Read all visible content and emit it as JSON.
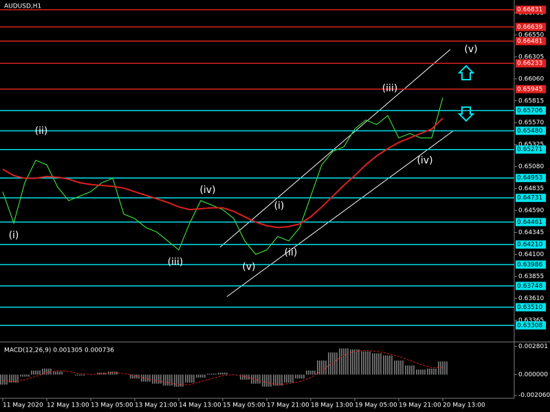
{
  "chart_data": [
    {
      "type": "line",
      "title": "AUDUSD,H1",
      "x": [
        "11 May 2020",
        null,
        null,
        null,
        "12 May 13:00",
        null,
        null,
        null,
        "13 May 05:00",
        null,
        null,
        null,
        "13 May 21:00",
        null,
        null,
        null,
        "14 May 13:00",
        null,
        null,
        null,
        "15 May 05:00",
        null,
        null,
        null,
        "17 May 21:00",
        null,
        null,
        null,
        "18 May 13:00",
        null,
        null,
        null,
        "19 May 05:00",
        null,
        null,
        null,
        "19 May 21:00",
        null,
        null,
        null,
        "20 May 13:00"
      ],
      "series": [
        {
          "color": "#3cdc3c",
          "values": [
            0.648,
            0.6445,
            0.649,
            0.6515,
            0.651,
            0.6485,
            0.647,
            0.6475,
            0.648,
            0.649,
            0.6495,
            0.6455,
            0.645,
            0.644,
            0.6435,
            0.6425,
            0.6415,
            0.6445,
            0.647,
            0.6465,
            0.646,
            0.645,
            0.6425,
            0.641,
            0.6415,
            0.643,
            0.6425,
            0.644,
            0.6475,
            0.651,
            0.6525,
            0.653,
            0.655,
            0.656,
            0.6555,
            0.6565,
            0.654,
            0.6545,
            0.654,
            0.654,
            0.6585
          ]
        },
        {
          "color": "#e02020",
          "values": [
            0.6505,
            0.6498,
            0.6495,
            0.6495,
            0.6497,
            0.6496,
            0.6494,
            0.649,
            0.6488,
            0.6487,
            0.6486,
            0.6484,
            0.648,
            0.6476,
            0.6472,
            0.6468,
            0.6463,
            0.646,
            0.6461,
            0.6462,
            0.6462,
            0.6458,
            0.6452,
            0.6446,
            0.6442,
            0.644,
            0.6441,
            0.6444,
            0.6452,
            0.6463,
            0.6475,
            0.6487,
            0.6498,
            0.651,
            0.652,
            0.6528,
            0.6535,
            0.654,
            0.6545,
            0.655,
            0.6562
          ]
        }
      ],
      "ylim": [
        0.6313,
        0.6694
      ],
      "yticks": [
        0.66795,
        {
          "value": 0.6655,
          "label": "0.66550"
        },
        0.66305,
        {
          "value": 0.6606,
          "label": "0.66060"
        },
        0.65815,
        {
          "value": 0.6557,
          "label": "0.65570"
        },
        0.65325,
        {
          "value": 0.6508,
          "label": "0.65080"
        },
        0.64835,
        {
          "value": 0.6459,
          "label": "0.64590"
        },
        0.64345,
        {
          "value": 0.641,
          "label": "0.64100"
        },
        0.63855,
        {
          "value": 0.6361,
          "label": "0.63610"
        },
        0.63365
      ],
      "levels": [
        {
          "value": 0.66831,
          "color": "#e02020"
        },
        {
          "value": 0.66639,
          "color": "#e02020"
        },
        {
          "value": 0.66481,
          "color": "#e02020"
        },
        {
          "value": 0.66233,
          "color": "#e02020"
        },
        {
          "value": 0.65945,
          "color": "#e02020"
        },
        {
          "value": 0.65706,
          "color": "#00e5ee"
        },
        {
          "value": 0.6548,
          "label": "0.65480",
          "color": "#00e5ee"
        },
        {
          "value": 0.65271,
          "color": "#00e5ee"
        },
        {
          "value": 0.64953,
          "color": "#00e5ee"
        },
        {
          "value": 0.64731,
          "color": "#00e5ee"
        },
        {
          "value": 0.64461,
          "color": "#00e5ee"
        },
        {
          "value": 0.6421,
          "label": "0.64210",
          "color": "#00e5ee"
        },
        {
          "value": 0.63986,
          "color": "#00e5ee"
        },
        {
          "value": 0.63748,
          "color": "#00e5ee"
        },
        {
          "value": 0.6351,
          "label": "0.63510",
          "color": "#00e5ee"
        },
        {
          "value": 0.63308,
          "color": "#00e5ee"
        }
      ],
      "annotations": [
        "(i)",
        "(ii)",
        "(iii)",
        "(iv)",
        "(v)",
        "(i)",
        "(ii)",
        "(iii)",
        "(iv)",
        "(v)"
      ]
    },
    {
      "type": "bar",
      "title": "MACD(12,26,9) 0.001305 0.000736",
      "series": [
        {
          "color": "#d0d0d0",
          "values": [
            -0.001,
            -0.0008,
            -0.0002,
            0.0004,
            0.0006,
            0.0003,
            0.0,
            -0.0001,
            0.0,
            0.0002,
            0.0003,
            0.0,
            -0.0004,
            -0.0007,
            -0.0009,
            -0.0011,
            -0.0012,
            -0.0008,
            -0.0003,
            0.0001,
            0.0002,
            0.0,
            -0.0005,
            -0.0009,
            -0.0012,
            -0.0011,
            -0.0008,
            -0.0004,
            0.0004,
            0.0014,
            0.0022,
            0.0026,
            0.0025,
            0.0023,
            0.0021,
            0.0019,
            0.0014,
            0.0009,
            0.0005,
            0.0006,
            0.0013
          ]
        },
        {
          "color": "#e02020",
          "values": [
            -0.0006,
            -0.0007,
            -0.0005,
            -0.0002,
            0.0002,
            0.0004,
            0.0003,
            0.0001,
            0.0,
            0.0001,
            0.0002,
            0.0001,
            -0.0001,
            -0.0004,
            -0.0006,
            -0.0008,
            -0.001,
            -0.001,
            -0.0007,
            -0.0004,
            -0.0001,
            0.0,
            -0.0002,
            -0.0005,
            -0.0008,
            -0.001,
            -0.0009,
            -0.0007,
            -0.0003,
            0.0004,
            0.0012,
            0.0019,
            0.0023,
            0.0024,
            0.0023,
            0.0021,
            0.0018,
            0.0014,
            0.001,
            0.0007,
            0.0007
          ]
        }
      ],
      "ylim": [
        -0.00235,
        0.0031
      ],
      "yticks": [
        0.002801,
        {
          "value": 0,
          "label": "0.000000"
        },
        {
          "value": -0.00206,
          "label": "-0.002060"
        }
      ]
    }
  ]
}
